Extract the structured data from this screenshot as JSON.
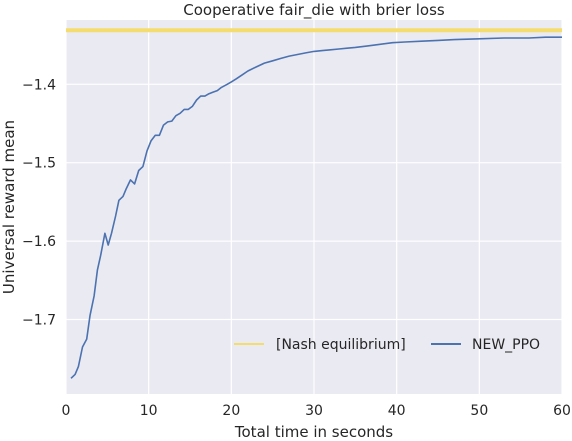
{
  "chart_data": {
    "type": "line",
    "title": "Cooperative fair_die with brier loss",
    "xlabel": "Total time in seconds",
    "ylabel": "Universal reward mean",
    "xlim": [
      0,
      60
    ],
    "ylim": [
      -1.795,
      -1.318
    ],
    "xticks": [
      0,
      10,
      20,
      30,
      40,
      50,
      60
    ],
    "yticks": [
      -1.7,
      -1.6,
      -1.5,
      -1.4
    ],
    "ytick_labels": [
      "−1.7",
      "−1.6",
      "−1.5",
      "−1.4"
    ],
    "grid": true,
    "legend_position": "lower-right",
    "colors": {
      "background": "#eaeaf2",
      "grid": "#ffffff",
      "nash": "#f5dc6e",
      "new_ppo": "#4c72b0"
    },
    "series": [
      {
        "name": "[Nash equilibrium]",
        "x": [
          0,
          60
        ],
        "y": [
          -1.331,
          -1.331
        ]
      },
      {
        "name": "NEW_PPO",
        "x": [
          0.6,
          1.1,
          1.5,
          2.0,
          2.5,
          2.9,
          3.4,
          3.8,
          4.2,
          4.7,
          5.1,
          5.5,
          6.0,
          6.4,
          6.9,
          7.3,
          7.8,
          8.3,
          8.8,
          9.3,
          9.8,
          10.3,
          10.8,
          11.3,
          11.8,
          12.3,
          12.8,
          13.3,
          13.8,
          14.3,
          14.8,
          15.3,
          15.8,
          16.3,
          16.8,
          17.3,
          17.8,
          18.3,
          18.8,
          19.5,
          20.0,
          20.6,
          21.3,
          22.0,
          23.0,
          24.0,
          25.0,
          26.0,
          27.0,
          28.0,
          29.0,
          30.0,
          31.0,
          32.0,
          33.0,
          34.0,
          35.0,
          36.5,
          38.0,
          39.5,
          41.0,
          43.0,
          45.0,
          47.0,
          50.0,
          53.0,
          56.0,
          58.0,
          60.0
        ],
        "y": [
          -1.775,
          -1.77,
          -1.76,
          -1.735,
          -1.725,
          -1.695,
          -1.67,
          -1.637,
          -1.618,
          -1.59,
          -1.605,
          -1.59,
          -1.568,
          -1.548,
          -1.543,
          -1.533,
          -1.522,
          -1.527,
          -1.51,
          -1.505,
          -1.485,
          -1.472,
          -1.465,
          -1.465,
          -1.452,
          -1.448,
          -1.447,
          -1.44,
          -1.437,
          -1.432,
          -1.432,
          -1.428,
          -1.42,
          -1.415,
          -1.415,
          -1.412,
          -1.41,
          -1.408,
          -1.404,
          -1.4,
          -1.397,
          -1.393,
          -1.388,
          -1.383,
          -1.378,
          -1.373,
          -1.37,
          -1.367,
          -1.364,
          -1.362,
          -1.36,
          -1.358,
          -1.357,
          -1.356,
          -1.355,
          -1.354,
          -1.353,
          -1.351,
          -1.349,
          -1.347,
          -1.346,
          -1.345,
          -1.344,
          -1.343,
          -1.342,
          -1.341,
          -1.341,
          -1.34,
          -1.34
        ]
      }
    ]
  }
}
